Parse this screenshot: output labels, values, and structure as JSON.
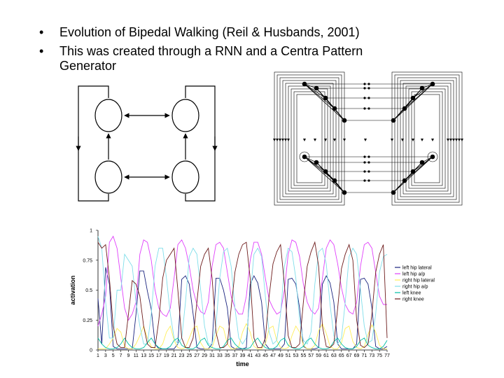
{
  "slide": {
    "bullets": [
      {
        "marker": "•",
        "text": "Evolution of Bipedal Walking (Reil & Husbands, 2001)"
      },
      {
        "marker": "•",
        "text": "This was created through a RNN and a Centra Pattern Generator"
      }
    ]
  },
  "chart_data": {
    "type": "line",
    "xlabel": "time",
    "ylabel": "activation",
    "ylim": [
      0,
      1
    ],
    "yticks": [
      "0",
      "0.25",
      "0.5",
      "0.75",
      "1"
    ],
    "xticks": [
      "1",
      "3",
      "5",
      "7",
      "9",
      "11",
      "13",
      "15",
      "17",
      "19",
      "21",
      "23",
      "25",
      "27",
      "29",
      "31",
      "33",
      "35",
      "37",
      "39",
      "41",
      "43",
      "45",
      "47",
      "49",
      "51",
      "53",
      "55",
      "57",
      "59",
      "61",
      "63",
      "65",
      "67",
      "69",
      "71",
      "73",
      "75",
      "77"
    ],
    "legend_position": "right",
    "series": [
      {
        "name": "left hip lateral",
        "color": "#1a237e",
        "values": [
          0.43,
          0.05,
          0.69,
          0.55,
          0.03,
          0.01,
          0.01,
          0.01,
          0.01,
          0.01,
          0.3,
          0.66,
          0.66,
          0.49,
          0.34,
          0.05,
          0.01,
          0.01,
          0.01,
          0.01,
          0.01,
          0.05,
          0.59,
          0.62,
          0.55,
          0.3,
          0.02,
          0.01,
          0.01,
          0.01,
          0.05,
          0.6,
          0.6,
          0.5,
          0.35,
          0.03,
          0.01,
          0.01,
          0.01,
          0.02,
          0.55,
          0.62,
          0.56,
          0.4,
          0.05,
          0.01,
          0.01,
          0.01,
          0.01,
          0.05,
          0.59,
          0.6,
          0.55,
          0.35,
          0.03,
          0.01,
          0.01,
          0.01,
          0.02,
          0.55,
          0.62,
          0.56,
          0.4,
          0.05,
          0.01,
          0.01,
          0.01,
          0.01,
          0.05,
          0.59,
          0.6,
          0.55,
          0.35,
          0.03,
          0.01,
          0.01,
          0.03
        ]
      },
      {
        "name": "left hip a/p",
        "color": "#e040fb",
        "values": [
          0.2,
          0.3,
          0.45,
          0.9,
          0.95,
          0.85,
          0.6,
          0.35,
          0.25,
          0.3,
          0.4,
          0.8,
          0.92,
          0.9,
          0.75,
          0.5,
          0.35,
          0.3,
          0.28,
          0.35,
          0.6,
          0.88,
          0.92,
          0.85,
          0.7,
          0.5,
          0.38,
          0.32,
          0.3,
          0.4,
          0.7,
          0.88,
          0.9,
          0.85,
          0.65,
          0.45,
          0.35,
          0.3,
          0.3,
          0.45,
          0.75,
          0.9,
          0.9,
          0.8,
          0.6,
          0.42,
          0.35,
          0.3,
          0.32,
          0.5,
          0.8,
          0.92,
          0.9,
          0.78,
          0.55,
          0.4,
          0.33,
          0.3,
          0.35,
          0.6,
          0.85,
          0.92,
          0.88,
          0.72,
          0.52,
          0.38,
          0.32,
          0.3,
          0.4,
          0.7,
          0.88,
          0.9,
          0.85,
          0.65,
          0.45,
          0.38,
          0.38
        ]
      },
      {
        "name": "right hip lateral",
        "color": "#ffee58",
        "values": [
          0.01,
          0.01,
          0.01,
          0.05,
          0.1,
          0.18,
          0.15,
          0.03,
          0.01,
          0.01,
          0.05,
          0.12,
          0.2,
          0.1,
          0.03,
          0.01,
          0.01,
          0.05,
          0.15,
          0.2,
          0.08,
          0.02,
          0.01,
          0.02,
          0.1,
          0.18,
          0.2,
          0.06,
          0.01,
          0.01,
          0.02,
          0.12,
          0.2,
          0.18,
          0.05,
          0.01,
          0.01,
          0.03,
          0.15,
          0.22,
          0.15,
          0.03,
          0.01,
          0.01,
          0.05,
          0.18,
          0.2,
          0.08,
          0.02,
          0.01,
          0.02,
          0.12,
          0.2,
          0.15,
          0.04,
          0.01,
          0.01,
          0.04,
          0.16,
          0.22,
          0.14,
          0.03,
          0.01,
          0.01,
          0.06,
          0.18,
          0.2,
          0.07,
          0.02,
          0.01,
          0.03,
          0.13,
          0.21,
          0.15,
          0.04,
          0.01,
          0.01
        ]
      },
      {
        "name": "right hip a/p",
        "color": "#80deea",
        "values": [
          0.95,
          0.85,
          0.4,
          0.1,
          0.1,
          0.5,
          0.5,
          0.8,
          0.75,
          0.7,
          0.4,
          0.2,
          0.05,
          0.05,
          0.3,
          0.7,
          0.85,
          0.85,
          0.6,
          0.3,
          0.1,
          0.05,
          0.1,
          0.4,
          0.78,
          0.85,
          0.8,
          0.5,
          0.2,
          0.05,
          0.05,
          0.2,
          0.6,
          0.82,
          0.85,
          0.7,
          0.35,
          0.1,
          0.05,
          0.1,
          0.45,
          0.8,
          0.85,
          0.78,
          0.45,
          0.15,
          0.05,
          0.08,
          0.3,
          0.7,
          0.85,
          0.82,
          0.6,
          0.25,
          0.08,
          0.05,
          0.15,
          0.55,
          0.82,
          0.85,
          0.72,
          0.38,
          0.12,
          0.05,
          0.1,
          0.4,
          0.78,
          0.85,
          0.8,
          0.5,
          0.2,
          0.06,
          0.08,
          0.3,
          0.65,
          0.78,
          0.8
        ]
      },
      {
        "name": "left knee",
        "color": "#00bfa5",
        "values": [
          0.1,
          0.05,
          0.02,
          0.01,
          0.01,
          0.02,
          0.05,
          0.1,
          0.05,
          0.02,
          0.01,
          0.01,
          0.02,
          0.06,
          0.1,
          0.05,
          0.02,
          0.01,
          0.01,
          0.03,
          0.08,
          0.1,
          0.04,
          0.02,
          0.01,
          0.01,
          0.03,
          0.08,
          0.1,
          0.04,
          0.02,
          0.01,
          0.01,
          0.03,
          0.08,
          0.1,
          0.05,
          0.02,
          0.01,
          0.01,
          0.02,
          0.07,
          0.1,
          0.05,
          0.02,
          0.01,
          0.01,
          0.03,
          0.08,
          0.1,
          0.04,
          0.02,
          0.01,
          0.01,
          0.03,
          0.08,
          0.1,
          0.05,
          0.02,
          0.01,
          0.01,
          0.02,
          0.07,
          0.1,
          0.05,
          0.02,
          0.01,
          0.01,
          0.03,
          0.08,
          0.1,
          0.04,
          0.02,
          0.01,
          0.01,
          0.03,
          0.08
        ]
      },
      {
        "name": "right knee",
        "color": "#6d1b1b",
        "values": [
          0.9,
          0.85,
          0.88,
          0.6,
          0.2,
          0.05,
          0.02,
          0.02,
          0.3,
          0.58,
          0.55,
          0.45,
          0.2,
          0.05,
          0.02,
          0.02,
          0.25,
          0.6,
          0.75,
          0.8,
          0.85,
          0.5,
          0.1,
          0.02,
          0.02,
          0.1,
          0.4,
          0.7,
          0.8,
          0.85,
          0.6,
          0.15,
          0.02,
          0.02,
          0.05,
          0.35,
          0.65,
          0.8,
          0.88,
          0.9,
          0.6,
          0.1,
          0.02,
          0.02,
          0.1,
          0.45,
          0.72,
          0.82,
          0.88,
          0.55,
          0.12,
          0.02,
          0.02,
          0.05,
          0.4,
          0.7,
          0.82,
          0.9,
          0.7,
          0.2,
          0.03,
          0.02,
          0.05,
          0.35,
          0.68,
          0.8,
          0.88,
          0.75,
          0.25,
          0.04,
          0.02,
          0.05,
          0.3,
          0.65,
          0.8,
          0.88,
          0.1
        ]
      }
    ]
  }
}
